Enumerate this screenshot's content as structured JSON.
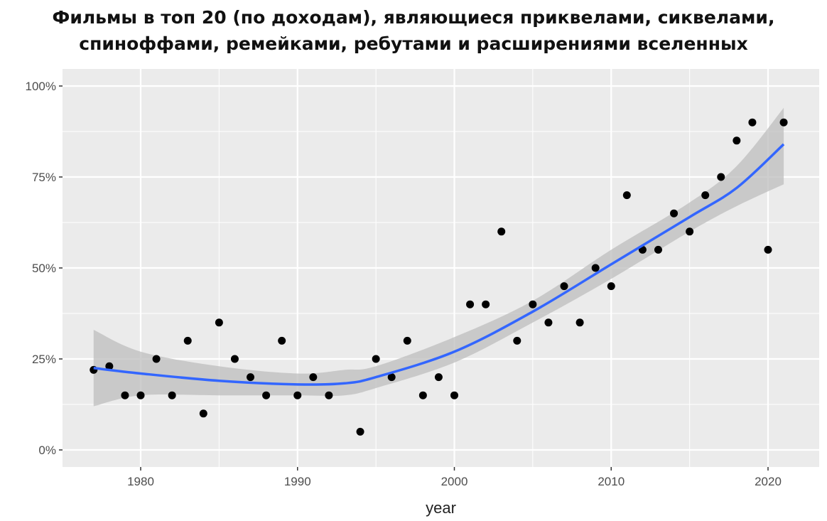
{
  "chart_data": {
    "type": "scatter",
    "title_lines": [
      "Фильмы в топ 20 (по доходам), являющиеся приквелами, сиквелами,",
      "спиноффами, ремейками, ребутами и расширениями вселенных"
    ],
    "xlabel": "year",
    "ylabel": "",
    "xlim": [
      1975,
      2023
    ],
    "ylim": [
      -0.05,
      1.05
    ],
    "x_ticks": [
      1980,
      1990,
      2000,
      2010,
      2020
    ],
    "y_ticks": [
      0,
      0.25,
      0.5,
      0.75,
      1.0
    ],
    "y_tick_labels": [
      "0%",
      "25%",
      "50%",
      "75%",
      "100%"
    ],
    "grid": true,
    "colors": {
      "points": "#000000",
      "smooth": "#3366FF",
      "band": "#BEBEBE",
      "panel": "#EBEBEB"
    },
    "points": {
      "x": [
        1977,
        1978,
        1979,
        1980,
        1981,
        1982,
        1983,
        1984,
        1985,
        1986,
        1987,
        1988,
        1989,
        1990,
        1991,
        1992,
        1994,
        1995,
        1996,
        1997,
        1998,
        1999,
        2000,
        2001,
        2002,
        2003,
        2004,
        2005,
        2006,
        2007,
        2008,
        2009,
        2010,
        2011,
        2012,
        2013,
        2014,
        2015,
        2016,
        2017,
        2018,
        2019,
        2020,
        2021
      ],
      "y": [
        0.22,
        0.23,
        0.15,
        0.15,
        0.25,
        0.15,
        0.3,
        0.1,
        0.35,
        0.25,
        0.2,
        0.15,
        0.3,
        0.15,
        0.2,
        0.15,
        0.05,
        0.25,
        0.2,
        0.3,
        0.15,
        0.2,
        0.15,
        0.4,
        0.4,
        0.6,
        0.3,
        0.4,
        0.35,
        0.45,
        0.35,
        0.5,
        0.45,
        0.7,
        0.55,
        0.55,
        0.65,
        0.6,
        0.7,
        0.75,
        0.85,
        0.9,
        0.55,
        0.9
      ]
    },
    "smooth": {
      "x": [
        1977,
        1980,
        1985,
        1990,
        1993,
        1995,
        2000,
        2005,
        2010,
        2015,
        2018,
        2021
      ],
      "y": [
        0.225,
        0.21,
        0.19,
        0.18,
        0.183,
        0.2,
        0.27,
        0.38,
        0.51,
        0.64,
        0.72,
        0.84
      ],
      "lower": [
        0.12,
        0.15,
        0.15,
        0.15,
        0.15,
        0.17,
        0.24,
        0.35,
        0.47,
        0.6,
        0.67,
        0.73
      ],
      "upper": [
        0.33,
        0.27,
        0.23,
        0.21,
        0.22,
        0.23,
        0.31,
        0.41,
        0.55,
        0.68,
        0.78,
        0.94
      ]
    }
  }
}
